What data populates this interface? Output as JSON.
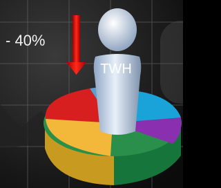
{
  "illustration": {
    "caption": "- 40%",
    "figure_label": "TWH"
  }
}
